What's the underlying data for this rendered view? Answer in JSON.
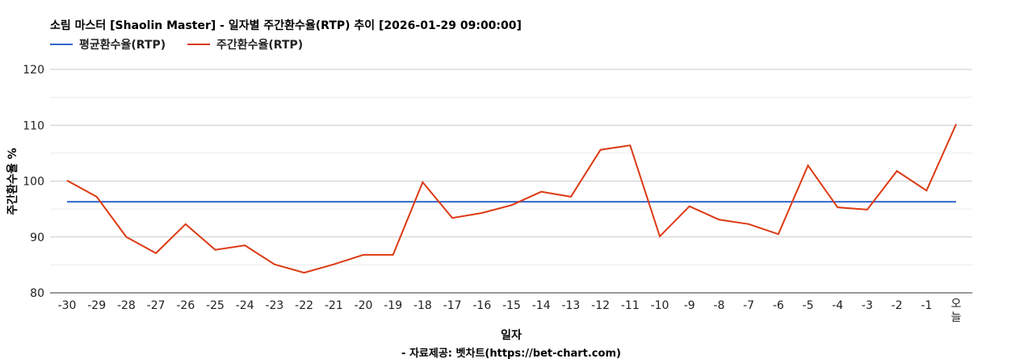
{
  "chart_data": {
    "type": "line",
    "title": "소림 마스터 [Shaolin Master] - 일자별 주간환수율(RTP) 추이 [2026-01-29 09:00:00]",
    "xlabel": "일자",
    "ylabel": "주간환수율 %",
    "source": "- 자료제공: 벳차트(https://bet-chart.com)",
    "ylim": [
      80,
      120
    ],
    "yticks": [
      "80",
      "90",
      "100",
      "110",
      "120"
    ],
    "grid": true,
    "legend_position": "top-left",
    "categories": [
      "-30",
      "-29",
      "-28",
      "-27",
      "-26",
      "-25",
      "-24",
      "-23",
      "-22",
      "-21",
      "-20",
      "-19",
      "-18",
      "-17",
      "-16",
      "-15",
      "-14",
      "-13",
      "-12",
      "-11",
      "-10",
      "-9",
      "-8",
      "-7",
      "-6",
      "-5",
      "-4",
      "-3",
      "-2",
      "-1",
      "오늘"
    ],
    "series": [
      {
        "name": "평균환수율(RTP)",
        "color": "#3366cc",
        "values": [
          96.3,
          96.3,
          96.3,
          96.3,
          96.3,
          96.3,
          96.3,
          96.3,
          96.3,
          96.3,
          96.3,
          96.3,
          96.3,
          96.3,
          96.3,
          96.3,
          96.3,
          96.3,
          96.3,
          96.3,
          96.3,
          96.3,
          96.3,
          96.3,
          96.3,
          96.3,
          96.3,
          96.3,
          96.3,
          96.3,
          96.3
        ]
      },
      {
        "name": "주간환수율(RTP)",
        "color": "#dc3912",
        "values": [
          100.1,
          97.2,
          90.0,
          87.1,
          92.3,
          87.7,
          88.5,
          85.1,
          83.6,
          85.1,
          86.8,
          86.8,
          99.8,
          93.4,
          94.3,
          95.7,
          98.1,
          97.2,
          105.6,
          106.4,
          90.1,
          95.5,
          93.1,
          92.3,
          90.5,
          102.8,
          95.3,
          94.9,
          101.8,
          98.3,
          110.2
        ]
      }
    ]
  }
}
